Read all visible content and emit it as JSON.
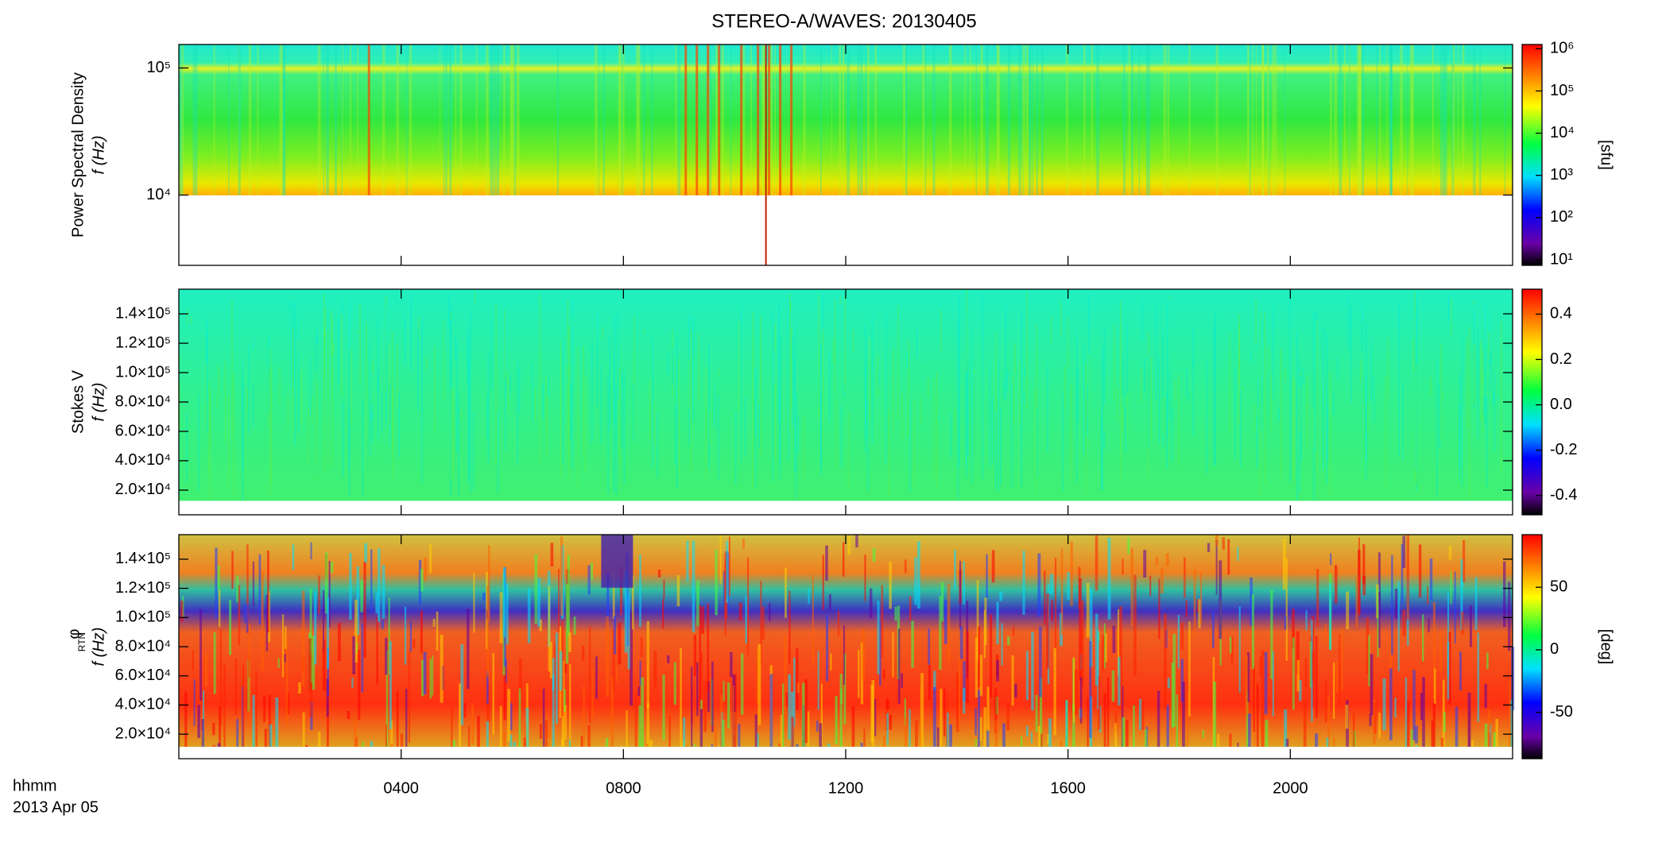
{
  "title": "STEREO-A/WAVES: 20130405",
  "time_label": "hhmm",
  "date_label": "2013 Apr 05",
  "chart_data": [
    {
      "type": "heatmap",
      "ylabel": [
        "Power Spectral Density",
        "f (Hz)"
      ],
      "yscale": "log",
      "ylim": [
        2800,
        153000
      ],
      "yticks": [
        {
          "value": 10000,
          "label": "10⁴"
        },
        {
          "value": 100000,
          "label": "10⁵"
        }
      ],
      "xlim": [
        0,
        24
      ],
      "xticks": [
        4,
        8,
        12,
        16,
        20
      ],
      "colorbar": {
        "label": "[sfu]",
        "scale": "log",
        "lim": [
          7.4,
          1260000
        ],
        "ticks": [
          {
            "value": 10,
            "label": "10¹"
          },
          {
            "value": 100,
            "label": "10²"
          },
          {
            "value": 1000,
            "label": "10³"
          },
          {
            "value": 10000,
            "label": "10⁴"
          },
          {
            "value": 100000,
            "label": "10⁵"
          },
          {
            "value": 1000000,
            "label": "10⁶"
          }
        ]
      }
    },
    {
      "type": "heatmap",
      "ylabel": [
        "Stokes V",
        "f (Hz)"
      ],
      "yscale": "linear",
      "ylim": [
        3200,
        156800
      ],
      "yticks": [
        {
          "value": 20000,
          "label": "2.0×10⁴"
        },
        {
          "value": 40000,
          "label": "4.0×10⁴"
        },
        {
          "value": 60000,
          "label": "6.0×10⁴"
        },
        {
          "value": 80000,
          "label": "8.0×10⁴"
        },
        {
          "value": 100000,
          "label": "1.0×10⁵"
        },
        {
          "value": 120000,
          "label": "1.2×10⁵"
        },
        {
          "value": 140000,
          "label": "1.4×10⁵"
        }
      ],
      "xlim": [
        0,
        24
      ],
      "xticks": [
        4,
        8,
        12,
        16,
        20
      ],
      "colorbar": {
        "scale": "linear",
        "lim": [
          -0.485,
          0.51
        ],
        "ticks": [
          -0.4,
          -0.2,
          {
            "value": 0,
            "label": "0.0"
          },
          0.2,
          0.4
        ]
      }
    },
    {
      "type": "heatmap",
      "ylabel": [
        "φ",
        "RTN",
        "f (Hz)"
      ],
      "yscale": "linear",
      "ylim": [
        3200,
        156800
      ],
      "yticks": [
        {
          "value": 20000,
          "label": "2.0×10⁴"
        },
        {
          "value": 40000,
          "label": "4.0×10⁴"
        },
        {
          "value": 60000,
          "label": "6.0×10⁴"
        },
        {
          "value": 80000,
          "label": "8.0×10⁴"
        },
        {
          "value": 100000,
          "label": "1.0×10⁵"
        },
        {
          "value": 120000,
          "label": "1.2×10⁵"
        },
        {
          "value": 140000,
          "label": "1.4×10⁵"
        }
      ],
      "xlim": [
        0,
        24
      ],
      "xticks": [
        {
          "value": 4,
          "label": "0400"
        },
        {
          "value": 8,
          "label": "0800"
        },
        {
          "value": 12,
          "label": "1200"
        },
        {
          "value": 16,
          "label": "1600"
        },
        {
          "value": 20,
          "label": "2000"
        }
      ],
      "colorbar": {
        "label": "[deg]",
        "scale": "linear",
        "lim": [
          -87,
          92
        ],
        "ticks": [
          -50,
          0,
          50
        ]
      }
    }
  ]
}
